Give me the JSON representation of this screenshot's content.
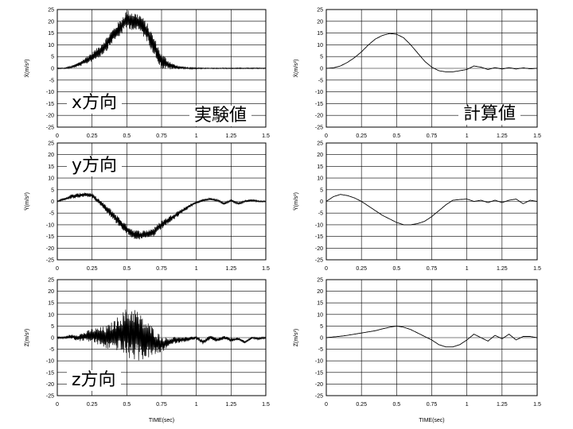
{
  "labels": {
    "x_dir": "x方向",
    "y_dir": "y方向",
    "z_dir": "z方向",
    "experimental": "実験値",
    "calculated": "計算値"
  },
  "chart_data": [
    {
      "type": "line",
      "id": "x-exp",
      "ylabel": "Ẍ(m/s²)",
      "xlabel": "",
      "xlim": [
        0,
        1.5
      ],
      "ylim": [
        -25,
        25
      ],
      "xticks": [
        "0",
        "0.25",
        "0.5",
        "0.75",
        "1",
        "1.25",
        "1.5"
      ],
      "yticks": [
        "25",
        "20",
        "15",
        "10",
        "5",
        "0",
        "-5",
        "-10",
        "-15",
        "-20",
        "-25"
      ],
      "grid": true,
      "noisy": true,
      "x": [
        0,
        0.05,
        0.1,
        0.15,
        0.2,
        0.25,
        0.3,
        0.35,
        0.4,
        0.45,
        0.5,
        0.55,
        0.6,
        0.65,
        0.7,
        0.75,
        0.8,
        0.85,
        0.9,
        0.95,
        1.0,
        1.05,
        1.1,
        1.15,
        1.2,
        1.25,
        1.3,
        1.35,
        1.4,
        1.45,
        1.5
      ],
      "y": [
        0,
        0,
        0.5,
        1.5,
        3,
        5,
        7,
        10,
        14,
        17,
        21,
        20,
        19,
        15,
        9,
        3,
        1.5,
        0.5,
        0.3,
        0,
        0,
        0,
        0,
        0,
        0,
        0,
        0,
        0,
        0,
        0,
        0
      ],
      "amp": [
        0.2,
        0.2,
        0.5,
        1,
        1.5,
        2,
        2.5,
        3,
        3,
        3.5,
        4,
        4,
        4,
        4,
        4,
        3.5,
        2,
        1,
        0.5,
        0.3,
        0.3,
        0.2,
        0.2,
        0.2,
        0.2,
        0.2,
        0.2,
        0.2,
        0.2,
        0.2,
        0.2
      ]
    },
    {
      "type": "line",
      "id": "x-calc",
      "ylabel": "Ẍ(m/s²)",
      "xlabel": "",
      "xlim": [
        0,
        1.5
      ],
      "ylim": [
        -25,
        25
      ],
      "xticks": [
        "0",
        "0.25",
        "0.5",
        "0.75",
        "1",
        "1.25",
        "1.5"
      ],
      "yticks": [
        "25",
        "20",
        "15",
        "10",
        "5",
        "0",
        "-5",
        "-10",
        "-15",
        "-20",
        "-25"
      ],
      "grid": true,
      "noisy": false,
      "x": [
        0,
        0.05,
        0.1,
        0.15,
        0.2,
        0.25,
        0.3,
        0.35,
        0.4,
        0.45,
        0.5,
        0.55,
        0.6,
        0.65,
        0.7,
        0.75,
        0.8,
        0.85,
        0.9,
        0.95,
        1.0,
        1.05,
        1.1,
        1.15,
        1.2,
        1.25,
        1.3,
        1.35,
        1.4,
        1.45,
        1.5
      ],
      "y": [
        0,
        0.2,
        1,
        2.5,
        4.5,
        7,
        10,
        12.5,
        14,
        14.8,
        14.5,
        13,
        10,
        6.5,
        3,
        0.5,
        -1,
        -1.5,
        -1.5,
        -1,
        -0.5,
        1,
        0.5,
        -0.5,
        0.3,
        -0.3,
        0.3,
        -0.3,
        0.2,
        -0.2,
        0
      ],
      "amp": []
    },
    {
      "type": "line",
      "id": "y-exp",
      "ylabel": "Ÿ(m/s²)",
      "xlabel": "",
      "xlim": [
        0,
        1.5
      ],
      "ylim": [
        -25,
        25
      ],
      "xticks": [
        "0",
        "0.25",
        "0.5",
        "0.75",
        "1",
        "1.25",
        "1.5"
      ],
      "yticks": [
        "25",
        "20",
        "15",
        "10",
        "5",
        "0",
        "-5",
        "-10",
        "-15",
        "-20",
        "-25"
      ],
      "grid": true,
      "noisy": true,
      "x": [
        0,
        0.05,
        0.1,
        0.15,
        0.2,
        0.25,
        0.3,
        0.35,
        0.4,
        0.45,
        0.5,
        0.55,
        0.6,
        0.65,
        0.7,
        0.75,
        0.8,
        0.85,
        0.9,
        0.95,
        1.0,
        1.05,
        1.1,
        1.15,
        1.2,
        1.25,
        1.3,
        1.35,
        1.4,
        1.45,
        1.5
      ],
      "y": [
        0,
        1,
        2,
        2.5,
        3,
        2.5,
        0,
        -3,
        -6,
        -9,
        -12,
        -14,
        -14.5,
        -14,
        -13,
        -10,
        -8,
        -6,
        -4,
        -2,
        -0.5,
        0.5,
        1,
        0.5,
        -1,
        0.5,
        -1,
        0,
        0.5,
        0,
        0
      ],
      "amp": [
        0.3,
        0.5,
        1,
        1,
        1,
        1,
        1,
        1.5,
        2,
        2,
        2,
        2,
        2,
        2,
        2,
        2,
        1.5,
        1.5,
        1,
        0.8,
        0.5,
        0.5,
        0.5,
        0.5,
        0.5,
        0.5,
        0.5,
        0.5,
        0.5,
        0.3,
        0.3
      ]
    },
    {
      "type": "line",
      "id": "y-calc",
      "ylabel": "Ÿ(m/s²)",
      "xlabel": "",
      "xlim": [
        0,
        1.5
      ],
      "ylim": [
        -25,
        25
      ],
      "xticks": [
        "0",
        "0.25",
        "0.5",
        "0.75",
        "1",
        "1.25",
        "1.5"
      ],
      "yticks": [
        "25",
        "20",
        "15",
        "10",
        "5",
        "0",
        "-5",
        "-10",
        "-15",
        "-20",
        "-25"
      ],
      "grid": true,
      "noisy": false,
      "x": [
        0,
        0.05,
        0.1,
        0.15,
        0.2,
        0.25,
        0.3,
        0.35,
        0.4,
        0.45,
        0.5,
        0.55,
        0.6,
        0.65,
        0.7,
        0.75,
        0.8,
        0.85,
        0.9,
        0.95,
        1.0,
        1.05,
        1.1,
        1.15,
        1.2,
        1.25,
        1.3,
        1.35,
        1.4,
        1.45,
        1.5
      ],
      "y": [
        0,
        2,
        3,
        2.5,
        1.5,
        0,
        -2,
        -4,
        -6,
        -7.5,
        -9,
        -10,
        -10,
        -9.5,
        -8.5,
        -6.5,
        -4,
        -1.5,
        0.5,
        0.8,
        1,
        0,
        0.5,
        -0.5,
        0.5,
        -0.5,
        0.5,
        1,
        -1,
        0.5,
        0
      ],
      "amp": []
    },
    {
      "type": "line",
      "id": "z-exp",
      "ylabel": "Z̈(m/s²)",
      "xlabel": "TIME(sec)",
      "xlim": [
        0,
        1.5
      ],
      "ylim": [
        -25,
        25
      ],
      "xticks": [
        "0",
        "0.25",
        "0.5",
        "0.75",
        "1",
        "1.25",
        "1.5"
      ],
      "yticks": [
        "25",
        "20",
        "15",
        "10",
        "5",
        "0",
        "-5",
        "-10",
        "-15",
        "-20",
        "-25"
      ],
      "grid": true,
      "noisy": true,
      "x": [
        0,
        0.05,
        0.1,
        0.15,
        0.2,
        0.25,
        0.3,
        0.35,
        0.4,
        0.45,
        0.5,
        0.55,
        0.6,
        0.65,
        0.7,
        0.75,
        0.8,
        0.85,
        0.9,
        0.95,
        1.0,
        1.05,
        1.1,
        1.15,
        1.2,
        1.25,
        1.3,
        1.35,
        1.4,
        1.45,
        1.5
      ],
      "y": [
        0,
        0,
        0.5,
        0,
        0.5,
        1,
        0.5,
        0,
        1,
        2,
        2,
        2,
        0,
        -1,
        -2,
        -3,
        -2,
        -1,
        -1,
        -0.5,
        0,
        -2,
        0,
        -1,
        0,
        -1,
        -0.5,
        -2,
        0,
        -0.5,
        0
      ],
      "amp": [
        0.5,
        0.5,
        1,
        1.5,
        2,
        3,
        4,
        5,
        6,
        8,
        11,
        12,
        10,
        8,
        6,
        3.5,
        2,
        1.5,
        1,
        1,
        0.8,
        1,
        1,
        0.8,
        0.8,
        0.8,
        0.6,
        0.6,
        0.5,
        0.5,
        0.5
      ]
    },
    {
      "type": "line",
      "id": "z-calc",
      "ylabel": "Z̈(m/s²)",
      "xlabel": "TIME(sec)",
      "xlim": [
        0,
        1.5
      ],
      "ylim": [
        -25,
        25
      ],
      "xticks": [
        "0",
        "0.25",
        "0.5",
        "0.75",
        "1",
        "1.25",
        "1.5"
      ],
      "yticks": [
        "25",
        "20",
        "15",
        "10",
        "5",
        "0",
        "-5",
        "-10",
        "-15",
        "-20",
        "-25"
      ],
      "grid": true,
      "noisy": false,
      "x": [
        0,
        0.05,
        0.1,
        0.15,
        0.2,
        0.25,
        0.3,
        0.35,
        0.4,
        0.45,
        0.5,
        0.55,
        0.6,
        0.65,
        0.7,
        0.75,
        0.8,
        0.85,
        0.9,
        0.95,
        1.0,
        1.05,
        1.1,
        1.15,
        1.2,
        1.25,
        1.3,
        1.35,
        1.4,
        1.45,
        1.5
      ],
      "y": [
        0,
        0.3,
        0.6,
        1,
        1.5,
        2,
        2.5,
        3,
        3.8,
        4.5,
        5,
        4.5,
        3.5,
        2,
        0.5,
        -1,
        -3,
        -4,
        -4,
        -3,
        -1,
        1.5,
        0,
        -1.5,
        1,
        -0.5,
        1.5,
        -1,
        0.5,
        0.5,
        0
      ],
      "amp": []
    }
  ]
}
